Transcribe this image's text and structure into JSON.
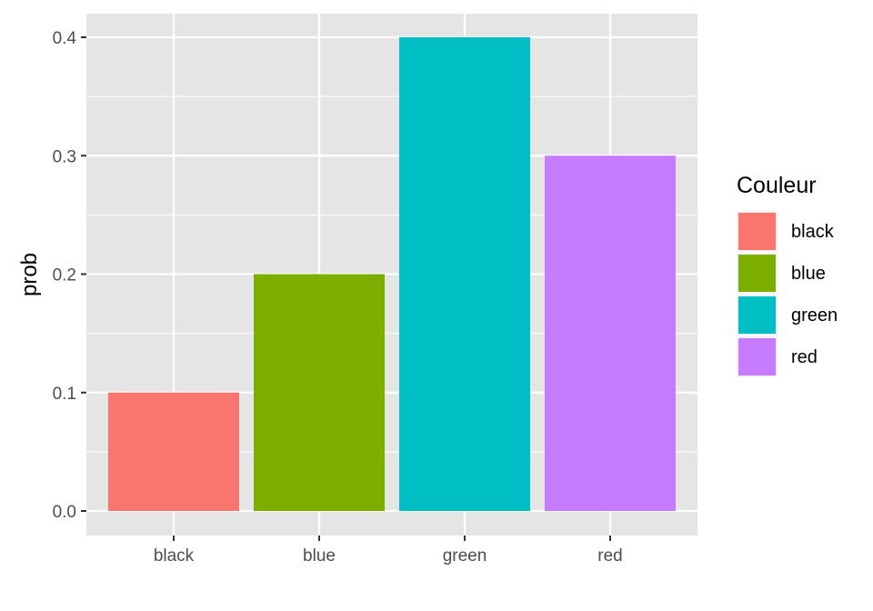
{
  "chart_data": {
    "type": "bar",
    "categories": [
      "black",
      "blue",
      "green",
      "red"
    ],
    "values": [
      0.1,
      0.2,
      0.4,
      0.3
    ],
    "colors": [
      "#F8766D",
      "#7CAE00",
      "#00BFC4",
      "#C77CFF"
    ],
    "xlabel": "",
    "ylabel": "prob",
    "ylim": [
      0,
      0.42
    ],
    "yticks": [
      "0.0",
      "0.1",
      "0.2",
      "0.3",
      "0.4"
    ],
    "ytick_values": [
      0.0,
      0.1,
      0.2,
      0.3,
      0.4
    ],
    "grid": true,
    "panel_background": "#E5E5E5",
    "grid_color": "#FFFFFF",
    "legend": {
      "title": "Couleur",
      "placement": "right",
      "entries": [
        "black",
        "blue",
        "green",
        "red"
      ]
    }
  }
}
